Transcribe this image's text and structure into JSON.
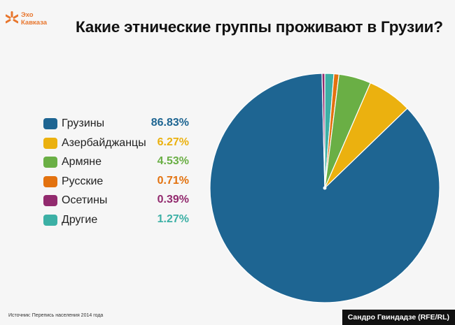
{
  "brand": {
    "line1": "Эхо",
    "line2": "Кавказа",
    "color": "#e8762d"
  },
  "chart_data": {
    "type": "pie",
    "title": "Какие этнические группы проживают в Грузии?",
    "categories": [
      "Грузины",
      "Азербайджанцы",
      "Армяне",
      "Русские",
      "Осетины",
      "Другие"
    ],
    "values": [
      86.83,
      6.27,
      4.53,
      0.71,
      0.39,
      1.27
    ],
    "value_labels": [
      "86.83%",
      "6.27%",
      "4.53%",
      "0.71%",
      "0.39%",
      "1.27%"
    ],
    "colors": [
      "#1e6592",
      "#ebb10f",
      "#6aaf45",
      "#e3720f",
      "#922a6e",
      "#3cb0a5"
    ],
    "slice_order": [
      "Другие",
      "Русские",
      "Армяне",
      "Азербайджанцы",
      "Грузины",
      "Осетины"
    ],
    "legend_position": "left"
  },
  "footer": {
    "source": "Источник: Перепись населения 2014 года",
    "credit": "Сандро Гвиндадзе (RFE/RL)"
  }
}
